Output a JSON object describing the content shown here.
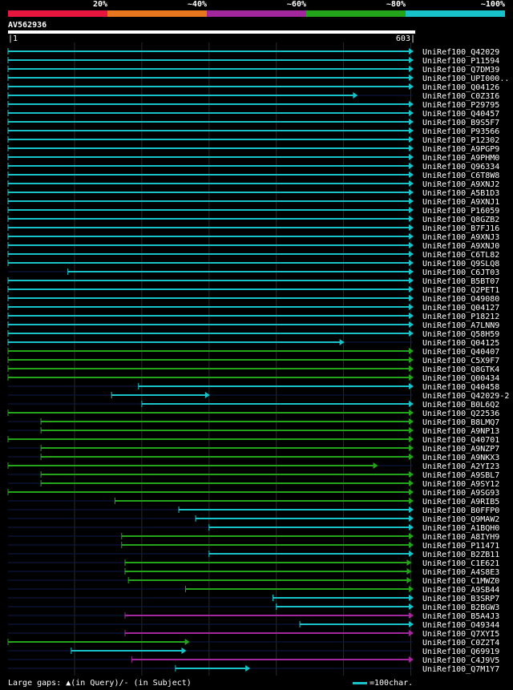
{
  "legend": {
    "labels": [
      "20%",
      "~40%",
      "~60%",
      "~80%",
      "~100%"
    ],
    "colors": [
      "#e8163e",
      "#e8761e",
      "#a3279c",
      "#24a41a",
      "#17c3c9"
    ]
  },
  "query": {
    "name": "AV562936",
    "start": "1",
    "end": "603"
  },
  "hits": [
    {
      "name": "UniRef100_Q42029",
      "from": 1,
      "to": 603,
      "color": "#17c3c9"
    },
    {
      "name": "UniRef100_P11594",
      "from": 1,
      "to": 603,
      "color": "#17c3c9"
    },
    {
      "name": "UniRef100_Q7DM39",
      "from": 1,
      "to": 603,
      "color": "#17c3c9"
    },
    {
      "name": "UniRef100_UPI000..",
      "from": 1,
      "to": 603,
      "color": "#17c3c9"
    },
    {
      "name": "UniRef100_Q04126",
      "from": 1,
      "to": 603,
      "color": "#17c3c9"
    },
    {
      "name": "UniRef100_C0Z3I6",
      "from": 1,
      "to": 520,
      "color": "#17c3c9"
    },
    {
      "name": "UniRef100_P29795",
      "from": 1,
      "to": 603,
      "color": "#17c3c9"
    },
    {
      "name": "UniRef100_Q40457",
      "from": 1,
      "to": 603,
      "color": "#17c3c9"
    },
    {
      "name": "UniRef100_B9S5F7",
      "from": 1,
      "to": 603,
      "color": "#17c3c9"
    },
    {
      "name": "UniRef100_P93566",
      "from": 1,
      "to": 603,
      "color": "#17c3c9"
    },
    {
      "name": "UniRef100_P12302",
      "from": 1,
      "to": 603,
      "color": "#17c3c9"
    },
    {
      "name": "UniRef100_A9PGP9",
      "from": 1,
      "to": 603,
      "color": "#17c3c9"
    },
    {
      "name": "UniRef100_A9PHM0",
      "from": 1,
      "to": 603,
      "color": "#17c3c9"
    },
    {
      "name": "UniRef100_Q96334",
      "from": 1,
      "to": 603,
      "color": "#17c3c9"
    },
    {
      "name": "UniRef100_C6T8W8",
      "from": 1,
      "to": 603,
      "color": "#17c3c9"
    },
    {
      "name": "UniRef100_A9XNJ2",
      "from": 1,
      "to": 603,
      "color": "#17c3c9"
    },
    {
      "name": "UniRef100_A5B1D3",
      "from": 1,
      "to": 603,
      "color": "#17c3c9"
    },
    {
      "name": "UniRef100_A9XNJ1",
      "from": 1,
      "to": 603,
      "color": "#17c3c9"
    },
    {
      "name": "UniRef100_P16059",
      "from": 1,
      "to": 603,
      "color": "#17c3c9"
    },
    {
      "name": "UniRef100_Q8GZB2",
      "from": 1,
      "to": 603,
      "color": "#17c3c9"
    },
    {
      "name": "UniRef100_B7FJ16",
      "from": 1,
      "to": 603,
      "color": "#17c3c9"
    },
    {
      "name": "UniRef100_A9XNJ3",
      "from": 1,
      "to": 603,
      "color": "#17c3c9"
    },
    {
      "name": "UniRef100_A9XNJ0",
      "from": 1,
      "to": 603,
      "color": "#17c3c9"
    },
    {
      "name": "UniRef100_C6TL82",
      "from": 1,
      "to": 603,
      "color": "#17c3c9"
    },
    {
      "name": "UniRef100_Q9SLQ8",
      "from": 1,
      "to": 603,
      "color": "#17c3c9"
    },
    {
      "name": "UniRef100_C6JT03",
      "from": 90,
      "to": 603,
      "color": "#17c3c9"
    },
    {
      "name": "UniRef100_B5BT07",
      "from": 1,
      "to": 603,
      "color": "#17c3c9"
    },
    {
      "name": "UniRef100_Q2PET1",
      "from": 1,
      "to": 603,
      "color": "#17c3c9"
    },
    {
      "name": "UniRef100_O49080",
      "from": 1,
      "to": 603,
      "color": "#17c3c9"
    },
    {
      "name": "UniRef100_Q04127",
      "from": 1,
      "to": 603,
      "color": "#17c3c9"
    },
    {
      "name": "UniRef100_P18212",
      "from": 1,
      "to": 603,
      "color": "#17c3c9"
    },
    {
      "name": "UniRef100_A7LNN9",
      "from": 1,
      "to": 603,
      "color": "#17c3c9"
    },
    {
      "name": "UniRef100_Q58H59",
      "from": 1,
      "to": 603,
      "color": "#17c3c9"
    },
    {
      "name": "UniRef100_Q04125",
      "from": 1,
      "to": 500,
      "color": "#17c3c9"
    },
    {
      "name": "UniRef100_Q40407",
      "from": 1,
      "to": 603,
      "color": "#24a41a"
    },
    {
      "name": "UniRef100_C5X9F7",
      "from": 1,
      "to": 603,
      "color": "#24a41a"
    },
    {
      "name": "UniRef100_Q8GTK4",
      "from": 1,
      "to": 603,
      "color": "#24a41a"
    },
    {
      "name": "UniRef100_Q00434",
      "from": 1,
      "to": 603,
      "color": "#24a41a"
    },
    {
      "name": "UniRef100_Q40458",
      "from": 195,
      "to": 603,
      "color": "#17c3c9"
    },
    {
      "name": "UniRef100_Q42029-2",
      "from": 155,
      "to": 300,
      "color": "#17c3c9"
    },
    {
      "name": "UniRef100_B0L6Q2",
      "from": 200,
      "to": 603,
      "color": "#17c3c9"
    },
    {
      "name": "UniRef100_Q22536",
      "from": 1,
      "to": 603,
      "color": "#24a41a"
    },
    {
      "name": "UniRef100_B8LMQ7",
      "from": 50,
      "to": 603,
      "color": "#24a41a"
    },
    {
      "name": "UniRef100_A9NP13",
      "from": 50,
      "to": 603,
      "color": "#24a41a"
    },
    {
      "name": "UniRef100_Q40701",
      "from": 1,
      "to": 603,
      "color": "#24a41a"
    },
    {
      "name": "UniRef100_A9NZP7",
      "from": 50,
      "to": 603,
      "color": "#24a41a"
    },
    {
      "name": "UniRef100_A9NKX3",
      "from": 50,
      "to": 603,
      "color": "#24a41a"
    },
    {
      "name": "UniRef100_A2YI23",
      "from": 1,
      "to": 550,
      "color": "#24a41a"
    },
    {
      "name": "UniRef100_A9SBL7",
      "from": 50,
      "to": 603,
      "color": "#24a41a"
    },
    {
      "name": "UniRef100_A9SY12",
      "from": 50,
      "to": 603,
      "color": "#24a41a"
    },
    {
      "name": "UniRef100_A9SG93",
      "from": 1,
      "to": 603,
      "color": "#24a41a"
    },
    {
      "name": "UniRef100_A9RIB5",
      "from": 160,
      "to": 603,
      "color": "#24a41a"
    },
    {
      "name": "UniRef100_B0FFP0",
      "from": 255,
      "to": 603,
      "color": "#17c3c9"
    },
    {
      "name": "UniRef100_Q9MAW2",
      "from": 280,
      "to": 603,
      "color": "#17c3c9"
    },
    {
      "name": "UniRef100_A1BQH0",
      "from": 300,
      "to": 603,
      "color": "#17c3c9"
    },
    {
      "name": "UniRef100_A8IYH9",
      "from": 170,
      "to": 603,
      "color": "#24a41a"
    },
    {
      "name": "UniRef100_P11471",
      "from": 170,
      "to": 603,
      "color": "#24a41a"
    },
    {
      "name": "UniRef100_B2ZB11",
      "from": 300,
      "to": 603,
      "color": "#17c3c9"
    },
    {
      "name": "UniRef100_C1E621",
      "from": 175,
      "to": 600,
      "color": "#24a41a"
    },
    {
      "name": "UniRef100_A4S8E3",
      "from": 175,
      "to": 600,
      "color": "#24a41a"
    },
    {
      "name": "UniRef100_C1MWZ0",
      "from": 180,
      "to": 600,
      "color": "#24a41a"
    },
    {
      "name": "UniRef100_A9SB44",
      "from": 265,
      "to": 603,
      "color": "#24a41a"
    },
    {
      "name": "UniRef100_B3SRP7",
      "from": 395,
      "to": 603,
      "color": "#17c3c9"
    },
    {
      "name": "UniRef100_B2BGW3",
      "from": 400,
      "to": 603,
      "color": "#17c3c9"
    },
    {
      "name": "UniRef100_B5A4J3",
      "from": 175,
      "to": 603,
      "color": "#a3279c"
    },
    {
      "name": "UniRef100_O49344",
      "from": 435,
      "to": 603,
      "color": "#17c3c9"
    },
    {
      "name": "UniRef100_Q7XYI5",
      "from": 175,
      "to": 603,
      "color": "#a3279c"
    },
    {
      "name": "UniRef100_C0Z2T4",
      "from": 1,
      "to": 270,
      "color": "#24a41a"
    },
    {
      "name": "UniRef100_Q69919",
      "from": 95,
      "to": 265,
      "color": "#17c3c9"
    },
    {
      "name": "UniRef100_C4J9V5",
      "from": 185,
      "to": 603,
      "color": "#a3279c"
    },
    {
      "name": "UniRef100_Q7M1Y7",
      "from": 250,
      "to": 360,
      "color": "#17c3c9"
    }
  ],
  "footer": {
    "gaps_label": "Large gaps: ▲(in Query)/- (in Subject)",
    "scale_label": "=100char."
  }
}
